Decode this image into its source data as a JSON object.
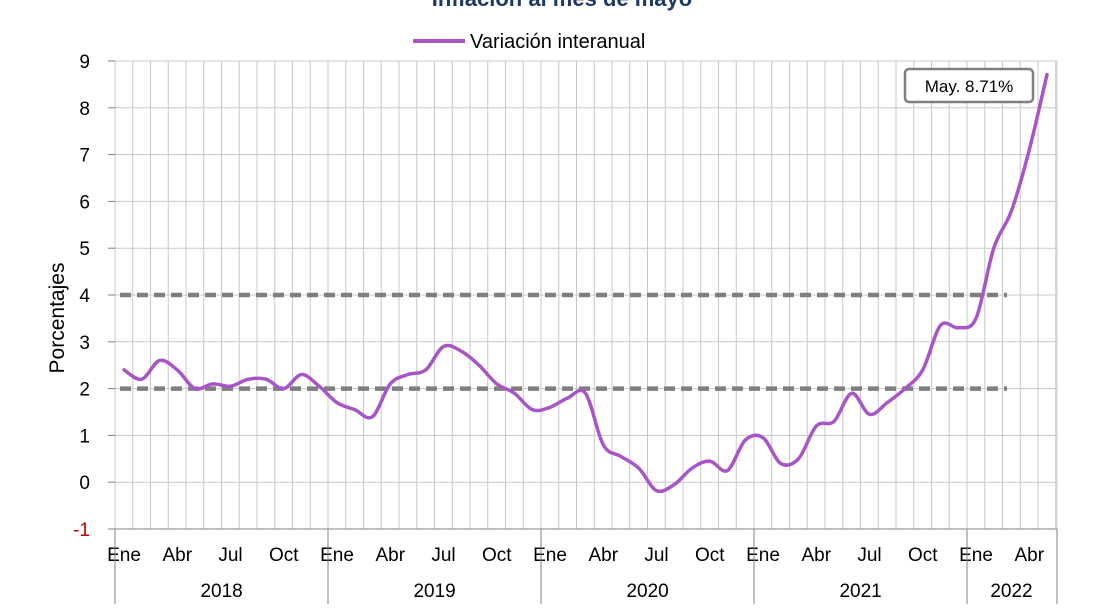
{
  "title": "Inflación al mes de mayo",
  "colors": {
    "series": "#a855c8",
    "reference": "#7f7f7f",
    "grid": "#c8c8c8",
    "negative_tick": "#c00000",
    "title": "#1f3864"
  },
  "chart_data": {
    "type": "line",
    "title": "Inflación al mes de mayo",
    "ylabel": "Porcentajes",
    "xlabel": "",
    "ylim": [
      -1,
      9
    ],
    "yticks": [
      -1,
      0,
      1,
      2,
      3,
      4,
      5,
      6,
      7,
      8,
      9
    ],
    "grid": true,
    "legend_position": "top-center",
    "month_tick_labels": [
      "Ene",
      "Abr",
      "Jul",
      "Oct"
    ],
    "years": [
      "2018",
      "2019",
      "2020",
      "2021",
      "2022"
    ],
    "x": [
      "2018-01",
      "2018-02",
      "2018-03",
      "2018-04",
      "2018-05",
      "2018-06",
      "2018-07",
      "2018-08",
      "2018-09",
      "2018-10",
      "2018-11",
      "2018-12",
      "2019-01",
      "2019-02",
      "2019-03",
      "2019-04",
      "2019-05",
      "2019-06",
      "2019-07",
      "2019-08",
      "2019-09",
      "2019-10",
      "2019-11",
      "2019-12",
      "2020-01",
      "2020-02",
      "2020-03",
      "2020-04",
      "2020-05",
      "2020-06",
      "2020-07",
      "2020-08",
      "2020-09",
      "2020-10",
      "2020-11",
      "2020-12",
      "2021-01",
      "2021-02",
      "2021-03",
      "2021-04",
      "2021-05",
      "2021-06",
      "2021-07",
      "2021-08",
      "2021-09",
      "2021-10",
      "2021-11",
      "2021-12",
      "2022-01",
      "2022-02",
      "2022-03",
      "2022-04",
      "2022-05"
    ],
    "series": [
      {
        "name": "Variación interanual",
        "values": [
          2.4,
          2.2,
          2.6,
          2.4,
          2.0,
          2.1,
          2.05,
          2.2,
          2.2,
          2.0,
          2.3,
          2.05,
          1.7,
          1.55,
          1.4,
          2.1,
          2.3,
          2.4,
          2.9,
          2.8,
          2.5,
          2.1,
          1.9,
          1.55,
          1.6,
          1.8,
          1.9,
          0.8,
          0.55,
          0.3,
          -0.18,
          -0.05,
          0.3,
          0.45,
          0.25,
          0.9,
          0.95,
          0.4,
          0.5,
          1.2,
          1.3,
          1.9,
          1.45,
          1.7,
          2.0,
          2.4,
          3.35,
          3.3,
          3.5,
          5.0,
          5.8,
          7.1,
          8.71
        ]
      }
    ],
    "reference_lines": [
      2,
      4
    ],
    "annotation": "May. 8.71%"
  }
}
